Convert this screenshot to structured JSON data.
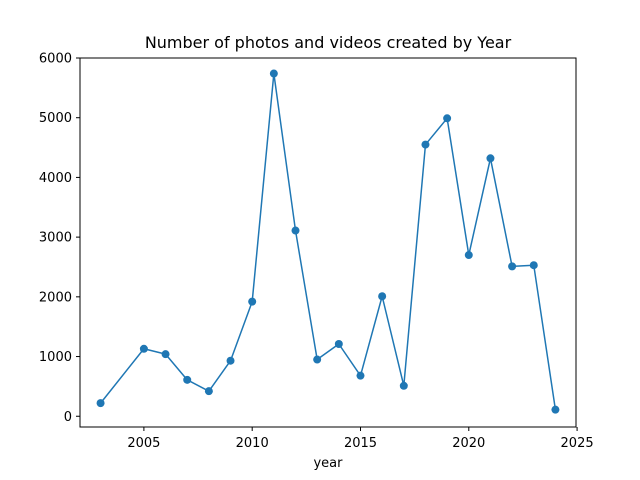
{
  "chart_data": {
    "type": "line",
    "title": "Number of photos and videos created by Year",
    "xlabel": "year",
    "ylabel": "",
    "xlim": [
      2002.05,
      2024.95
    ],
    "ylim": [
      -180,
      6000
    ],
    "xticks": [
      2005,
      2010,
      2015,
      2020,
      2025
    ],
    "yticks": [
      0,
      1000,
      2000,
      3000,
      4000,
      5000,
      6000
    ],
    "grid": false,
    "color": "#1f77b4",
    "series": [
      {
        "x": [
          2003,
          2005,
          2006,
          2007,
          2008,
          2009,
          2010,
          2011,
          2012,
          2013,
          2014,
          2015,
          2016,
          2017,
          2018,
          2019,
          2020,
          2021,
          2022,
          2023,
          2024
        ],
        "values": [
          220,
          1130,
          1040,
          610,
          420,
          930,
          1920,
          5740,
          3110,
          950,
          1210,
          680,
          2010,
          510,
          4550,
          4990,
          2700,
          4320,
          2510,
          2530,
          110
        ]
      }
    ]
  }
}
